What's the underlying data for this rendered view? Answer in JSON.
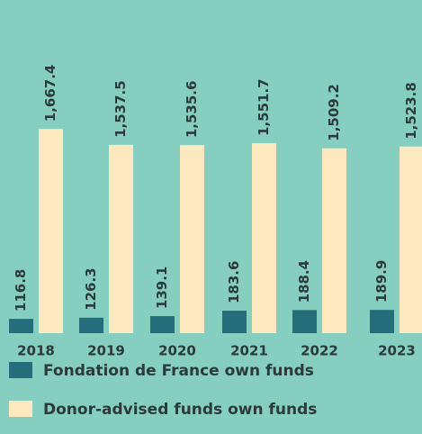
{
  "chart_data": {
    "type": "bar",
    "categories": [
      "2018",
      "2019",
      "2020",
      "2021",
      "2022",
      "2023"
    ],
    "series": [
      {
        "name": "Fondation de France own funds",
        "color": "#236e7a",
        "values": [
          116.8,
          126.3,
          139.1,
          183.6,
          188.4,
          189.9
        ]
      },
      {
        "name": "Donor-advised funds own funds",
        "color": "#fde9bf",
        "values": [
          1667.4,
          1537.5,
          1535.6,
          1551.7,
          1509.2,
          1523.8
        ],
        "value_labels": [
          "1,667.4",
          "1,537.5",
          "1,535.6",
          "1,551.7",
          "1,509.2",
          "1,523.8"
        ]
      }
    ],
    "background": "#86cfc0"
  }
}
